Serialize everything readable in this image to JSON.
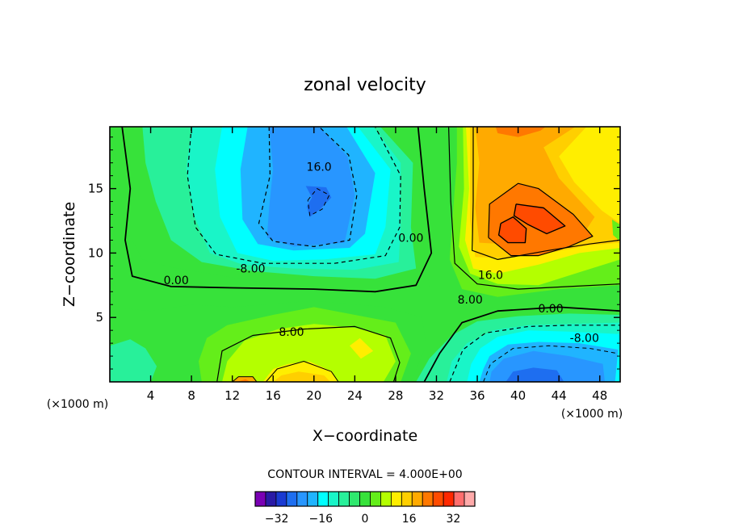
{
  "chart_data": {
    "type": "heatmap",
    "title": "zonal velocity",
    "xlabel": "X−coordinate",
    "ylabel": "Z−coordinate",
    "x_unit_label_left": "(×1000 m)",
    "x_unit_label_right": "(×1000 m)",
    "xlim": [
      0,
      50
    ],
    "ylim": [
      0,
      19.8
    ],
    "x_ticks": [
      4,
      8,
      12,
      16,
      20,
      24,
      28,
      32,
      36,
      40,
      44,
      48
    ],
    "x_tick_labels": [
      "4",
      "8",
      "12",
      "16",
      "20",
      "24",
      "28",
      "32",
      "36",
      "40",
      "44",
      "48"
    ],
    "y_ticks": [
      5,
      10,
      15
    ],
    "y_tick_labels": [
      "5",
      "10",
      "15"
    ],
    "contour_interval_text": "CONTOUR INTERVAL = 4.000E+00",
    "contour_interval": 4,
    "contour_labels": [
      {
        "text": "16.0",
        "x": 20.5,
        "z": 16.7
      },
      {
        "text": "-8.00",
        "x": 13.8,
        "z": 8.8
      },
      {
        "text": "0.00",
        "x": 6.5,
        "z": 7.9
      },
      {
        "text": "8.00",
        "x": 17.8,
        "z": 3.9
      },
      {
        "text": "0.00",
        "x": 29.5,
        "z": 11.2
      },
      {
        "text": "16.0",
        "x": 37.3,
        "z": 8.3
      },
      {
        "text": "8.00",
        "x": 35.3,
        "z": 6.4
      },
      {
        "text": "0.00",
        "x": 43.2,
        "z": 5.7
      },
      {
        "text": "-8.00",
        "x": 46.5,
        "z": 3.4
      }
    ],
    "extrema": [
      {
        "kind": "min",
        "x": 20.0,
        "z": 14.2,
        "value": -20
      },
      {
        "kind": "min",
        "x": 42.0,
        "z": 1.2,
        "value": -20
      },
      {
        "kind": "max",
        "x": 40.5,
        "z": 12.3,
        "value": 32
      },
      {
        "kind": "max",
        "x": 13.0,
        "z": 0.2,
        "value": 24
      }
    ],
    "colorbar": {
      "levels": [
        -36,
        -32,
        -28,
        -24,
        -20,
        -16,
        -12,
        -8,
        -4,
        0,
        4,
        8,
        12,
        16,
        20,
        24,
        28,
        32,
        36
      ],
      "tick_values": [
        -32,
        -16,
        0,
        16,
        32
      ],
      "tick_labels": [
        "−32",
        "−16",
        "0",
        "16",
        "32"
      ],
      "colors": [
        "#7a00b4",
        "#2a1aa6",
        "#1a3ad2",
        "#1e6ef0",
        "#2896ff",
        "#20b4ff",
        "#00ffff",
        "#19f5c8",
        "#28f09a",
        "#2fe86e",
        "#37e23a",
        "#64ee1a",
        "#b4ff00",
        "#ffee00",
        "#ffcf00",
        "#ffaa00",
        "#ff7800",
        "#ff4b00",
        "#ff2800",
        "#ff6e6e",
        "#ffaaaa"
      ]
    }
  }
}
